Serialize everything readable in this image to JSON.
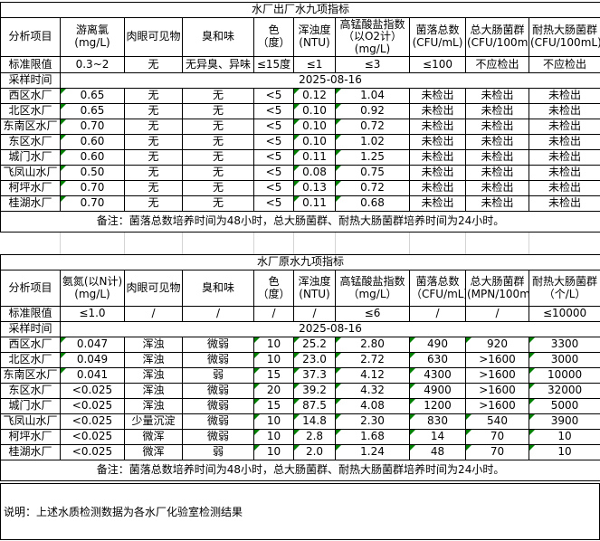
{
  "page": {
    "background": "#ffffff",
    "border_color": "#000000",
    "gridline_color": "#d4d4d4",
    "flag_color": "#008000"
  },
  "table1": {
    "title": "水厂出厂水九项指标",
    "row_label_header": "分析项目",
    "columns": [
      "游离氯\n(mg/L)",
      "肉眼可见物",
      "臭和味",
      "色（度）",
      "浑浊度\n(NTU)",
      "高锰酸盐指数\n（以O2计）\n(mg/L)",
      "菌落总数\n(CFU/mL)",
      "总大肠菌群\n(CFU/100mL)",
      "耐热大肠菌群\n(CFU/100mL)"
    ],
    "limit_row_label": "标准限值",
    "limits": [
      "0.3~2",
      "无",
      "无异臭、异味",
      "≤15度",
      "≤1",
      "≤3",
      "≤100",
      "不应检出",
      "不应检出"
    ],
    "sample_time_label": "采样时间",
    "sample_date": "2025-08-16",
    "rows": [
      {
        "name": "西区水厂",
        "values": [
          "0.65",
          "无",
          "无",
          "<5",
          "0.12",
          "1.04",
          "未检出",
          "未检出",
          "未检出"
        ],
        "flags": [
          1,
          0,
          0,
          0,
          1,
          1,
          0,
          0,
          0
        ]
      },
      {
        "name": "北区水厂",
        "values": [
          "0.65",
          "无",
          "无",
          "<5",
          "0.10",
          "0.92",
          "未检出",
          "未检出",
          "未检出"
        ],
        "flags": [
          1,
          0,
          0,
          0,
          1,
          1,
          0,
          0,
          0
        ]
      },
      {
        "name": "东南区水厂",
        "values": [
          "0.70",
          "无",
          "无",
          "<5",
          "0.10",
          "0.72",
          "未检出",
          "未检出",
          "未检出"
        ],
        "flags": [
          1,
          0,
          0,
          0,
          1,
          1,
          0,
          0,
          0
        ]
      },
      {
        "name": "东区水厂",
        "values": [
          "0.60",
          "无",
          "无",
          "<5",
          "0.10",
          "1.02",
          "未检出",
          "未检出",
          "未检出"
        ],
        "flags": [
          1,
          0,
          0,
          0,
          1,
          1,
          0,
          0,
          0
        ]
      },
      {
        "name": "城门水厂",
        "values": [
          "0.60",
          "无",
          "无",
          "<5",
          "0.11",
          "1.25",
          "未检出",
          "未检出",
          "未检出"
        ],
        "flags": [
          1,
          0,
          0,
          0,
          1,
          1,
          0,
          0,
          0
        ]
      },
      {
        "name": "飞凤山水厂",
        "values": [
          "0.50",
          "无",
          "无",
          "<5",
          "0.08",
          "0.75",
          "未检出",
          "未检出",
          "未检出"
        ],
        "flags": [
          1,
          0,
          0,
          0,
          1,
          1,
          0,
          0,
          0
        ]
      },
      {
        "name": "柯坪水厂",
        "values": [
          "0.70",
          "无",
          "无",
          "<5",
          "0.13",
          "0.72",
          "未检出",
          "未检出",
          "未检出"
        ],
        "flags": [
          1,
          0,
          0,
          0,
          1,
          1,
          0,
          0,
          0
        ]
      },
      {
        "name": "桂湖水厂",
        "values": [
          "0.70",
          "无",
          "无",
          "<5",
          "0.11",
          "0.68",
          "未检出",
          "未检出",
          "未检出"
        ],
        "flags": [
          1,
          0,
          0,
          0,
          1,
          1,
          0,
          0,
          0
        ]
      }
    ],
    "remark": "备注：菌落总数培养时间为48小时，总大肠菌群、耐热大肠菌群培养时间为24小时。"
  },
  "table2": {
    "title": "水厂原水九项指标",
    "row_label_header": "分析项目",
    "columns": [
      "氨氮(以N计)\n(mg/L)",
      "肉眼可见物",
      "臭和味",
      "色\n（度）",
      "浑浊度\n(NTU)",
      "高锰酸盐指数\n（mg/L）",
      "菌落总数\n（CFU/mL）",
      "总大肠菌群\n(MPN/100mL)",
      "耐热大肠菌群\n（个/L）"
    ],
    "limit_row_label": "标准限值",
    "limits": [
      "≤1.0",
      "/",
      "/",
      "/",
      "/",
      "≤6",
      "/",
      "/",
      "≤10000"
    ],
    "sample_time_label": "采样时间",
    "sample_date": "2025-08-16",
    "rows": [
      {
        "name": "西区水厂",
        "values": [
          "0.047",
          "浑浊",
          "微弱",
          "10",
          "25.2",
          "2.80",
          "490",
          "920",
          "3300"
        ],
        "flags": [
          1,
          0,
          0,
          1,
          1,
          1,
          1,
          1,
          1
        ]
      },
      {
        "name": "北区水厂",
        "values": [
          "0.049",
          "浑浊",
          "微弱",
          "10",
          "23.0",
          "2.72",
          "630",
          ">1600",
          "3000"
        ],
        "flags": [
          1,
          0,
          0,
          1,
          1,
          1,
          1,
          0,
          1
        ]
      },
      {
        "name": "东南区水厂",
        "values": [
          "0.041",
          "浑浊",
          "弱",
          "15",
          "37.3",
          "4.12",
          "4300",
          ">1600",
          "10000"
        ],
        "flags": [
          1,
          0,
          0,
          1,
          1,
          1,
          1,
          0,
          1
        ]
      },
      {
        "name": "东区水厂",
        "values": [
          "<0.025",
          "浑浊",
          "微弱",
          "20",
          "39.2",
          "4.32",
          "4900",
          ">1600",
          "32000"
        ],
        "flags": [
          0,
          0,
          0,
          1,
          1,
          1,
          1,
          0,
          1
        ]
      },
      {
        "name": "城门水厂",
        "values": [
          "<0.025",
          "浑浊",
          "微弱",
          "15",
          "87.5",
          "4.08",
          "1200",
          ">1600",
          "5000"
        ],
        "flags": [
          0,
          0,
          0,
          1,
          1,
          1,
          1,
          0,
          1
        ]
      },
      {
        "name": "飞凤山水厂",
        "values": [
          "<0.025",
          "少量沉淀",
          "微弱",
          "10",
          "14.8",
          "2.30",
          "830",
          "540",
          "3900"
        ],
        "flags": [
          0,
          0,
          0,
          1,
          1,
          1,
          1,
          1,
          1
        ]
      },
      {
        "name": "柯坪水厂",
        "values": [
          "<0.025",
          "微浑",
          "微弱",
          "10",
          "2.8",
          "1.68",
          "14",
          "70",
          "10"
        ],
        "flags": [
          0,
          0,
          0,
          1,
          1,
          1,
          1,
          1,
          1
        ]
      },
      {
        "name": "桂湖水厂",
        "values": [
          "<0.025",
          "微浑",
          "弱",
          "10",
          "2.0",
          "1.24",
          "48",
          "70",
          "10"
        ],
        "flags": [
          0,
          0,
          0,
          1,
          1,
          1,
          1,
          1,
          1
        ]
      }
    ],
    "remark": "备注：菌落总数培养时间为48小时，总大肠菌群、耐热大肠菌群培养时间为24小时。"
  },
  "note": "说明：上述水质检测数据为各水厂化验室检测结果"
}
